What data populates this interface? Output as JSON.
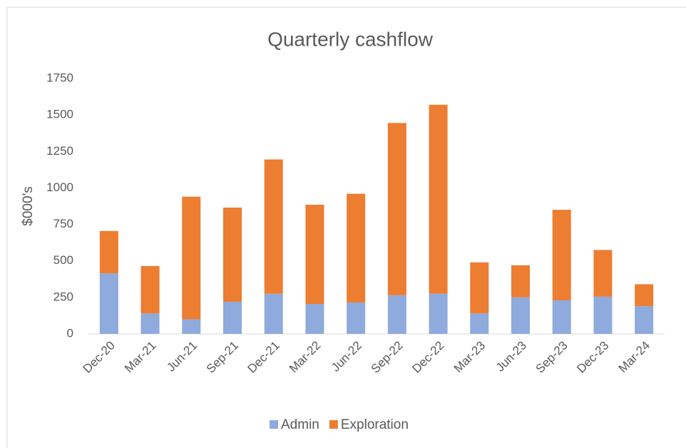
{
  "chart_data": {
    "type": "stacked_bar",
    "title": "Quarterly cashflow",
    "y_label": "$000's",
    "categories": [
      "Dec-20",
      "Mar-21",
      "Jun-21",
      "Sep-21",
      "Dec-21",
      "Mar-22",
      "Jun-22",
      "Sep-22",
      "Dec-22",
      "Mar-23",
      "Jun-23",
      "Sep-23",
      "Dec-23",
      "Mar-24"
    ],
    "series": [
      {
        "name": "Admin",
        "color": "#8faadc",
        "values": [
          415,
          140,
          100,
          220,
          275,
          205,
          215,
          265,
          275,
          140,
          250,
          230,
          255,
          190
        ]
      },
      {
        "name": "Exploration",
        "color": "#ed7d31",
        "values": [
          290,
          325,
          840,
          645,
          920,
          680,
          745,
          1180,
          1295,
          350,
          220,
          620,
          320,
          150
        ]
      }
    ],
    "ylim": [
      0,
      1750
    ],
    "yticks": [
      0,
      250,
      500,
      750,
      1000,
      1250,
      1500,
      1750
    ],
    "legend": "bottom"
  }
}
